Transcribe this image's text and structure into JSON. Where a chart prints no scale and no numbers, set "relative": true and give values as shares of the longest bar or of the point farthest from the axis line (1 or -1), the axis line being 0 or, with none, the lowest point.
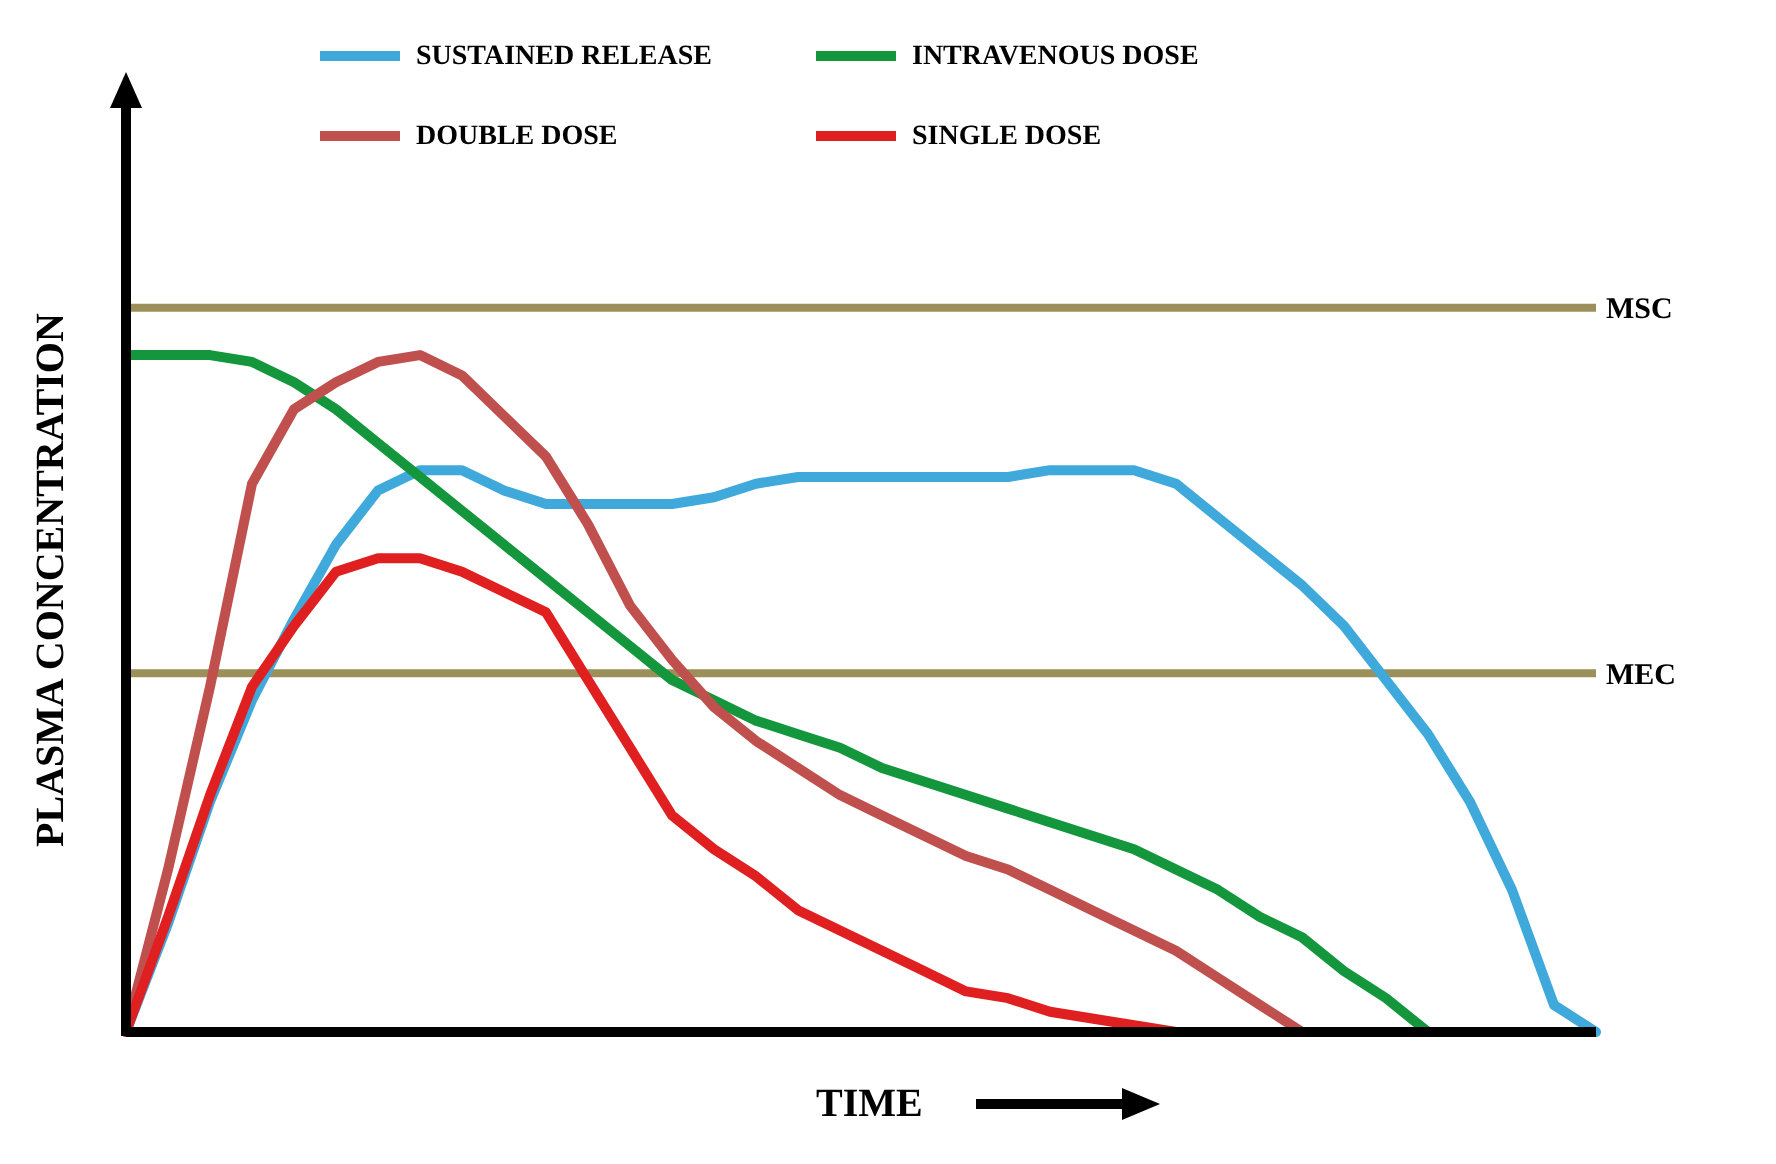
{
  "chart_data": {
    "type": "line",
    "relative": true,
    "xlabel": "TIME",
    "ylabel": "PLASMA CONCENTRATION",
    "legend": "top",
    "grid": false,
    "marker": "none",
    "line_style": "solid",
    "categories": [
      null,
      null,
      null,
      null,
      null,
      null,
      null,
      null,
      null,
      null,
      null,
      null,
      null,
      null,
      null,
      null,
      null,
      null,
      null,
      null,
      null,
      null,
      null,
      null,
      null,
      null,
      null,
      null,
      null,
      null,
      null,
      null,
      null,
      null,
      null,
      null
    ],
    "series": [
      {
        "name": "SUSTAINED RELEASE",
        "color": "#3fa9dc",
        "values": [
          0,
          0.16,
          0.34,
          0.49,
          0.61,
          0.72,
          0.8,
          0.83,
          0.83,
          0.8,
          0.78,
          0.78,
          0.78,
          0.78,
          0.79,
          0.81,
          0.82,
          0.82,
          0.82,
          0.82,
          0.82,
          0.82,
          0.83,
          0.83,
          0.83,
          0.81,
          0.76,
          0.71,
          0.66,
          0.6,
          0.52,
          0.44,
          0.34,
          0.21,
          0.04,
          0
        ]
      },
      {
        "name": "INTRAVENOUS DOSE",
        "color": "#14963c",
        "values": [
          1,
          1,
          1,
          0.99,
          0.96,
          0.92,
          0.87,
          0.82,
          0.77,
          0.72,
          0.67,
          0.62,
          0.57,
          0.52,
          0.49,
          0.46,
          0.44,
          0.42,
          0.39,
          0.37,
          0.35,
          0.33,
          0.31,
          0.29,
          0.27,
          0.24,
          0.21,
          0.17,
          0.14,
          0.09,
          0.05,
          0,
          null,
          null,
          null,
          null
        ]
      },
      {
        "name": "DOUBLE DOSE",
        "color": "#c0504d",
        "values": [
          0,
          0.24,
          0.51,
          0.81,
          0.92,
          0.96,
          0.99,
          1,
          0.97,
          0.91,
          0.85,
          0.75,
          0.63,
          0.55,
          0.48,
          0.43,
          0.39,
          0.35,
          0.32,
          0.29,
          0.26,
          0.24,
          0.21,
          0.18,
          0.15,
          0.12,
          0.08,
          0.04,
          0,
          null,
          null,
          null,
          null,
          null,
          null,
          null
        ]
      },
      {
        "name": "SINGLE DOSE",
        "color": "#e02020",
        "values": [
          0,
          0.17,
          0.35,
          0.51,
          0.6,
          0.68,
          0.7,
          0.7,
          0.68,
          0.65,
          0.62,
          0.52,
          0.42,
          0.32,
          0.27,
          0.23,
          0.18,
          0.15,
          0.12,
          0.09,
          0.06,
          0.05,
          0.03,
          0.02,
          0.01,
          0,
          null,
          null,
          null,
          null,
          null,
          null,
          null,
          null,
          null,
          null
        ]
      }
    ],
    "ref_lines": [
      {
        "axis": "y",
        "value": 1.07,
        "label": "MSC",
        "color": "#9b8f5a"
      },
      {
        "axis": "y",
        "value": 0.53,
        "label": "MEC",
        "color": "#9b8f5a"
      }
    ]
  }
}
